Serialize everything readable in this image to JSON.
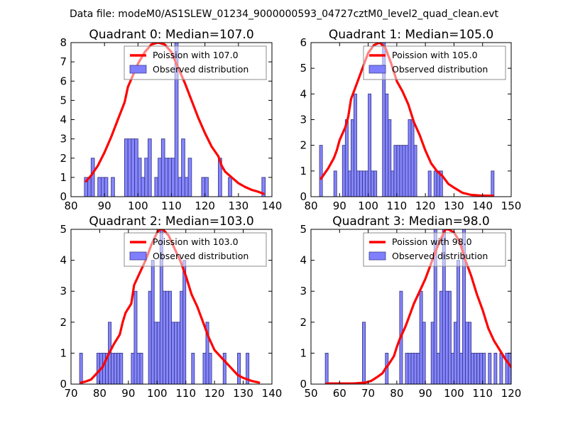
{
  "figure": {
    "suptitle": "Data file: modeM0/AS1SLEW_01234_9000000593_04727cztM0_level2_quad_clean.evt"
  },
  "colors": {
    "bar_fill": "#7f7fff",
    "bar_edge": "#3a3a8c",
    "poisson_line": "#ff0000",
    "legend_border": "#8c8c8c"
  },
  "chart_data": [
    {
      "type": "bar",
      "title": "Quadrant 0: Median=107.0",
      "xlim": [
        80,
        140
      ],
      "ylim": [
        0,
        8
      ],
      "xticks": [
        80,
        90,
        100,
        110,
        120,
        130,
        140
      ],
      "yticks": [
        0,
        1,
        2,
        3,
        4,
        5,
        6,
        7,
        8
      ],
      "legend": {
        "placement": "top-right",
        "entries": [
          "Poission with 107.0",
          "Observed distribution"
        ]
      },
      "histogram": {
        "bin_width": 1.0,
        "bins": [
          [
            84,
            1
          ],
          [
            85,
            1
          ],
          [
            86,
            2
          ],
          [
            88,
            1
          ],
          [
            89,
            1
          ],
          [
            90,
            1
          ],
          [
            92,
            1
          ],
          [
            96,
            3
          ],
          [
            97,
            3
          ],
          [
            98,
            3
          ],
          [
            99,
            3
          ],
          [
            100,
            2
          ],
          [
            101,
            1
          ],
          [
            102,
            2
          ],
          [
            103,
            3
          ],
          [
            105,
            1
          ],
          [
            106,
            2
          ],
          [
            107,
            3
          ],
          [
            108,
            2
          ],
          [
            109,
            2
          ],
          [
            110,
            2
          ],
          [
            111,
            8
          ],
          [
            112,
            1
          ],
          [
            113,
            3
          ],
          [
            114,
            1
          ],
          [
            115,
            2
          ],
          [
            119,
            1
          ],
          [
            120,
            1
          ],
          [
            124,
            2
          ],
          [
            127,
            1
          ],
          [
            137,
            1
          ]
        ]
      },
      "poisson": {
        "x": [
          84.5,
          86,
          88,
          90,
          92,
          94,
          96,
          97,
          98,
          100,
          102,
          104,
          106,
          108,
          110,
          112,
          114,
          116,
          118,
          120,
          122,
          124,
          125,
          126,
          128,
          130,
          132,
          134,
          136,
          137.5
        ],
        "y": [
          0.8,
          1.1,
          1.6,
          2.3,
          3.1,
          4.0,
          4.9,
          5.7,
          6.1,
          6.9,
          7.5,
          7.9,
          8.0,
          7.9,
          7.5,
          6.7,
          5.9,
          5.0,
          4.1,
          3.3,
          2.6,
          2.1,
          1.6,
          1.3,
          1.0,
          0.7,
          0.5,
          0.35,
          0.25,
          0.15
        ]
      }
    },
    {
      "type": "bar",
      "title": "Quadrant 1: Median=105.0",
      "xlim": [
        80,
        150
      ],
      "ylim": [
        0,
        6
      ],
      "xticks": [
        80,
        90,
        100,
        110,
        120,
        130,
        140,
        150
      ],
      "yticks": [
        0,
        1,
        2,
        3,
        4,
        5,
        6
      ],
      "legend": {
        "placement": "top-right",
        "entries": [
          "Poission with 105.0",
          "Observed distribution"
        ]
      },
      "histogram": {
        "bin_width": 1.0,
        "bins": [
          [
            83,
            2
          ],
          [
            88,
            1
          ],
          [
            91,
            2
          ],
          [
            92,
            3
          ],
          [
            93,
            1
          ],
          [
            94,
            3
          ],
          [
            95,
            4
          ],
          [
            96,
            1
          ],
          [
            97,
            1
          ],
          [
            98,
            1
          ],
          [
            99,
            1
          ],
          [
            100,
            4
          ],
          [
            101,
            1
          ],
          [
            102,
            1
          ],
          [
            105,
            6
          ],
          [
            106,
            4
          ],
          [
            107,
            3
          ],
          [
            108,
            1
          ],
          [
            109,
            2
          ],
          [
            110,
            2
          ],
          [
            111,
            2
          ],
          [
            112,
            2
          ],
          [
            113,
            2
          ],
          [
            114,
            3
          ],
          [
            115,
            3
          ],
          [
            116,
            2
          ],
          [
            121,
            1
          ],
          [
            123,
            1
          ],
          [
            124,
            1
          ],
          [
            125,
            1
          ],
          [
            143,
            1
          ]
        ]
      },
      "poisson": {
        "x": [
          83.5,
          86,
          88,
          89,
          90,
          92,
          93,
          94,
          96,
          98,
          100,
          102,
          104,
          106,
          108,
          110,
          112,
          114,
          116,
          118,
          120,
          122,
          124,
          126,
          128,
          130,
          133,
          136,
          140,
          143.5
        ],
        "y": [
          0.7,
          1.1,
          1.5,
          1.8,
          2.2,
          2.7,
          3.1,
          3.8,
          4.4,
          5.0,
          5.6,
          5.9,
          6.0,
          5.8,
          5.2,
          4.5,
          4.1,
          3.6,
          2.9,
          2.4,
          1.8,
          1.3,
          1.0,
          0.8,
          0.5,
          0.35,
          0.15,
          0.07,
          0.04,
          0.04
        ]
      }
    },
    {
      "type": "bar",
      "title": "Quadrant 2: Median=103.0",
      "xlim": [
        70,
        140
      ],
      "ylim": [
        0,
        5
      ],
      "xticks": [
        70,
        80,
        90,
        100,
        110,
        120,
        130,
        140
      ],
      "yticks": [
        0,
        1,
        2,
        3,
        4,
        5
      ],
      "legend": {
        "placement": "top-right",
        "entries": [
          "Poission with 103.0",
          "Observed distribution"
        ]
      },
      "histogram": {
        "bin_width": 1.0,
        "bins": [
          [
            73,
            1
          ],
          [
            79,
            1
          ],
          [
            80,
            1
          ],
          [
            81,
            1
          ],
          [
            82,
            1
          ],
          [
            83,
            2
          ],
          [
            84,
            1
          ],
          [
            85,
            1
          ],
          [
            86,
            1
          ],
          [
            87,
            1
          ],
          [
            91,
            1
          ],
          [
            92,
            3
          ],
          [
            93,
            1
          ],
          [
            94,
            1
          ],
          [
            97,
            3
          ],
          [
            98,
            4
          ],
          [
            99,
            2
          ],
          [
            100,
            2
          ],
          [
            101,
            5
          ],
          [
            102,
            3
          ],
          [
            103,
            3
          ],
          [
            104,
            3
          ],
          [
            105,
            2
          ],
          [
            106,
            2
          ],
          [
            107,
            2
          ],
          [
            108,
            3
          ],
          [
            109,
            4
          ],
          [
            112,
            1
          ],
          [
            116,
            1
          ],
          [
            117,
            2
          ],
          [
            118,
            1
          ],
          [
            123,
            1
          ],
          [
            128,
            1
          ],
          [
            131,
            1
          ]
        ]
      },
      "poisson": {
        "x": [
          73.5,
          75,
          77,
          79,
          81,
          83,
          85,
          87,
          88,
          89,
          91,
          92,
          94,
          96,
          98,
          100,
          101,
          102,
          104,
          106,
          108,
          110,
          112,
          114,
          116,
          118,
          120,
          122,
          124,
          126,
          128,
          130,
          133,
          135.5
        ],
        "y": [
          0.05,
          0.08,
          0.15,
          0.35,
          0.55,
          0.95,
          1.3,
          1.6,
          2.0,
          2.3,
          2.6,
          3.2,
          3.6,
          4.0,
          4.5,
          4.9,
          5.0,
          5.0,
          4.8,
          4.4,
          4.0,
          3.5,
          2.9,
          2.5,
          2.0,
          1.5,
          1.1,
          0.9,
          0.7,
          0.5,
          0.3,
          0.2,
          0.1,
          0.05
        ]
      }
    },
    {
      "type": "bar",
      "title": "Quadrant 3: Median=98.0",
      "xlim": [
        50,
        120
      ],
      "ylim": [
        0,
        5
      ],
      "xticks": [
        50,
        60,
        70,
        80,
        90,
        100,
        110,
        120
      ],
      "yticks": [
        0,
        1,
        2,
        3,
        4,
        5
      ],
      "legend": {
        "placement": "top-right",
        "entries": [
          "Poission with 98.0",
          "Observed distribution"
        ]
      },
      "histogram": {
        "bin_width": 1.0,
        "bins": [
          [
            55,
            1
          ],
          [
            68,
            2
          ],
          [
            76,
            1
          ],
          [
            81,
            3
          ],
          [
            83,
            1
          ],
          [
            84,
            1
          ],
          [
            85,
            1
          ],
          [
            86,
            1
          ],
          [
            87,
            1
          ],
          [
            88,
            3
          ],
          [
            89,
            2
          ],
          [
            92,
            2
          ],
          [
            93,
            5
          ],
          [
            94,
            1
          ],
          [
            95,
            3
          ],
          [
            96,
            5
          ],
          [
            97,
            3
          ],
          [
            98,
            3
          ],
          [
            99,
            1
          ],
          [
            100,
            2
          ],
          [
            101,
            4
          ],
          [
            102,
            1
          ],
          [
            103,
            5
          ],
          [
            104,
            2
          ],
          [
            105,
            2
          ],
          [
            106,
            1
          ],
          [
            107,
            1
          ],
          [
            108,
            1
          ],
          [
            109,
            1
          ],
          [
            110,
            1
          ],
          [
            112,
            1
          ],
          [
            114,
            1
          ],
          [
            116,
            1
          ],
          [
            118,
            1
          ],
          [
            119,
            1
          ]
        ]
      },
      "poisson": {
        "x": [
          55.5,
          60,
          65,
          69,
          71,
          73,
          75,
          76,
          77,
          79,
          80,
          81,
          82,
          83,
          84,
          86,
          88,
          90,
          92,
          94,
          96,
          97,
          98,
          100,
          102,
          104,
          106,
          108,
          110,
          112,
          114,
          115,
          116,
          118,
          120
        ],
        "y": [
          0.02,
          0.02,
          0.02,
          0.05,
          0.1,
          0.22,
          0.35,
          0.5,
          0.62,
          0.9,
          1.2,
          1.45,
          1.65,
          1.85,
          2.1,
          2.6,
          3.0,
          3.4,
          3.9,
          4.4,
          4.8,
          5.0,
          5.0,
          4.9,
          4.6,
          4.0,
          3.5,
          2.9,
          2.4,
          1.8,
          1.4,
          1.25,
          1.1,
          0.8,
          0.55
        ]
      }
    }
  ]
}
